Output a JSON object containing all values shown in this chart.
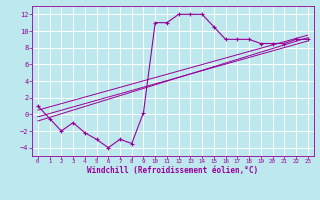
{
  "bg_color": "#bde8ee",
  "line_color": "#990099",
  "grid_color": "#ffffff",
  "xlabel": "Windchill (Refroidissement éolien,°C)",
  "xlim": [
    -0.5,
    23.5
  ],
  "ylim": [
    -5,
    13
  ],
  "yticks": [
    -4,
    -2,
    0,
    2,
    4,
    6,
    8,
    10,
    12
  ],
  "xticks": [
    0,
    1,
    2,
    3,
    4,
    5,
    6,
    7,
    8,
    9,
    10,
    11,
    12,
    13,
    14,
    15,
    16,
    17,
    18,
    19,
    20,
    21,
    22,
    23
  ],
  "data_line": {
    "x": [
      0,
      1,
      2,
      3,
      4,
      5,
      6,
      7,
      8,
      9,
      10,
      11,
      12,
      13,
      14,
      15,
      16,
      17,
      18,
      19,
      20,
      21,
      22,
      23
    ],
    "y": [
      1,
      -0.5,
      -2,
      -1.0,
      -2.2,
      -3.0,
      -4,
      -3.0,
      -3.5,
      0.2,
      11,
      11,
      12,
      12,
      12,
      10.5,
      9,
      9,
      9,
      8.5,
      8.5,
      8.5,
      9,
      9
    ]
  },
  "regression_lines": [
    {
      "x": [
        0,
        23
      ],
      "y": [
        -0.8,
        9.2
      ]
    },
    {
      "x": [
        0,
        23
      ],
      "y": [
        -0.3,
        8.8
      ]
    },
    {
      "x": [
        0,
        23
      ],
      "y": [
        0.5,
        9.5
      ]
    }
  ]
}
